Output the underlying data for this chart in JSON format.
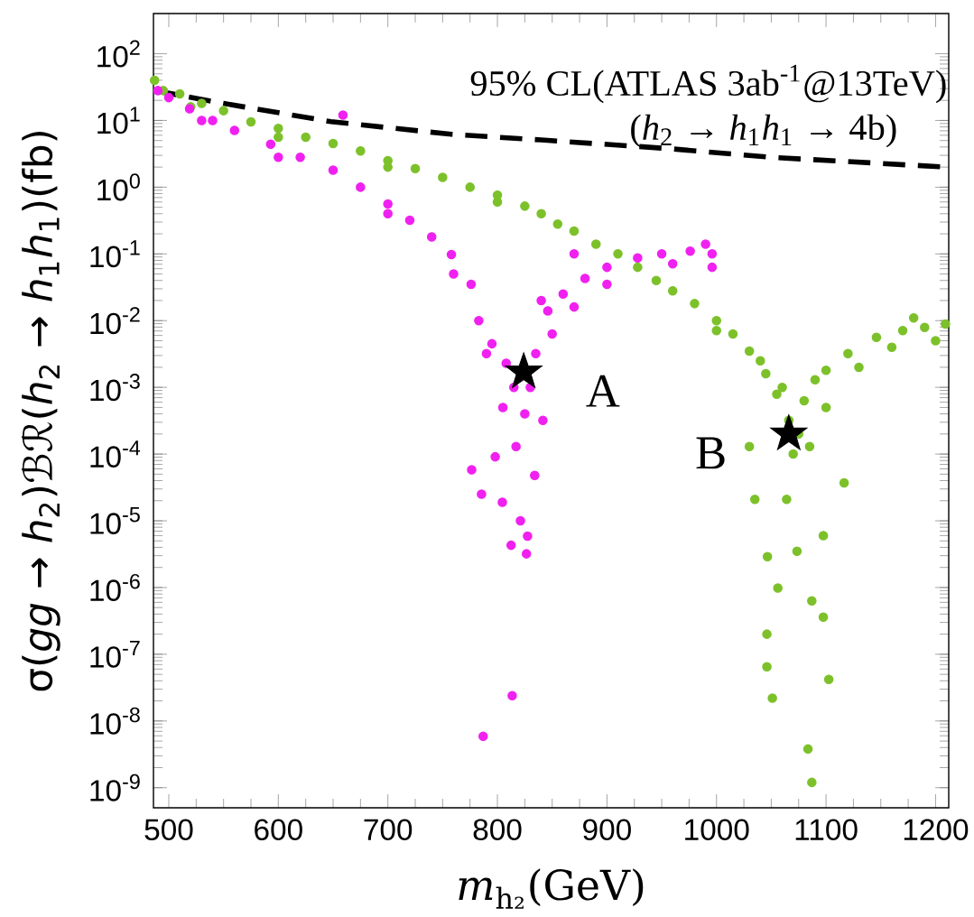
{
  "chart_data": {
    "type": "scatter",
    "xlabel": "*m*$_{h₂}$(GeV)",
    "ylabel": "σ(*gg* → *h*$_{2}$)ℬℛ(*h*$_{2}$ → *h*$_{1}$*h*$_{1}$)(fb)",
    "log": "y",
    "grid": false,
    "xlim": [
      486,
      1212
    ],
    "ylim": [
      5e-10,
      400
    ],
    "xticks": [
      500,
      600,
      700,
      800,
      900,
      1000,
      1100,
      1200
    ],
    "yticks": [
      {
        "value": 1e-09,
        "label": "10$^{-9}$"
      },
      {
        "value": 1e-08,
        "label": "10$^{-8}$"
      },
      {
        "value": 1e-07,
        "label": "10$^{-7}$"
      },
      {
        "value": 1e-06,
        "label": "10$^{-6}$"
      },
      {
        "value": 1e-05,
        "label": "10$^{-5}$"
      },
      {
        "value": 0.0001,
        "label": "10$^{-4}$"
      },
      {
        "value": 0.001,
        "label": "10$^{-3}$"
      },
      {
        "value": 0.01,
        "label": "10$^{-2}$"
      },
      {
        "value": 0.1,
        "label": "10$^{-1}$"
      },
      {
        "value": 1,
        "label": "10$^{0}$"
      },
      {
        "value": 10,
        "label": "10$^{1}$"
      },
      {
        "value": 100,
        "label": "10$^{2}$"
      }
    ],
    "series": [
      {
        "marker": "circle",
        "color": "#7cc12a",
        "x": [
          487,
          495,
          510,
          530,
          550,
          575,
          600,
          625,
          650,
          675,
          700,
          725,
          750,
          775,
          800,
          825,
          840,
          855,
          870,
          890,
          910,
          928,
          945,
          960,
          980,
          1000,
          1015,
          1030,
          1045,
          1055,
          1066,
          1080,
          1090,
          1100,
          1120,
          1146,
          1170,
          1190,
          1209,
          520,
          600,
          700,
          800,
          1000,
          1040,
          1060,
          1075,
          1070,
          1085,
          1100,
          1130,
          1160,
          1200,
          1180,
          1030,
          1035,
          1046.5,
          1046,
          1046,
          1051,
          1083.5,
          1087,
          1102.5,
          1097.5,
          1087,
          1097.5,
          1116.5,
          1064,
          1073.5,
          1056
        ],
        "values": [
          40,
          28,
          25,
          18,
          14,
          9.5,
          7.6,
          5.6,
          4.5,
          3.5,
          2.5,
          1.9,
          1.4,
          1.0,
          0.76,
          0.52,
          0.4,
          0.28,
          0.22,
          0.14,
          0.1,
          0.063,
          0.04,
          0.028,
          0.018,
          0.01,
          0.0063,
          0.0035,
          0.0016,
          0.00079,
          0.00032,
          0.00063,
          0.0013,
          0.0018,
          0.0032,
          0.0056,
          0.0071,
          0.0079,
          0.0089,
          16,
          5.6,
          2.0,
          0.6,
          0.0071,
          0.0025,
          0.001,
          0.0002,
          0.0001,
          0.00013,
          0.0005,
          0.002,
          0.004,
          0.005,
          0.011,
          0.00013,
          2.1e-05,
          2.9e-06,
          2e-07,
          6.5e-08,
          2.2e-08,
          3.8e-09,
          1.2e-09,
          4.2e-08,
          3.6e-07,
          6.3e-07,
          6e-06,
          3.7e-05,
          2.1e-05,
          3.5e-06,
          9.8e-07
        ]
      },
      {
        "marker": "circle",
        "color": "#f020f0",
        "x": [
          490,
          500,
          519,
          540,
          560,
          593,
          620,
          650,
          675,
          700,
          720,
          740,
          758,
          776,
          783,
          795,
          808,
          815,
          805,
          825,
          830,
          835,
          846,
          860,
          880,
          900,
          928,
          950,
          976,
          996,
          990,
          996,
          960,
          900,
          870,
          850,
          840,
          870,
          530,
          600,
          700,
          760,
          790,
          659,
          776.5,
          785.5,
          804.5,
          821,
          812.5,
          827.5,
          826.5,
          813.5,
          787,
          834,
          841.5,
          798,
          817
        ],
        "values": [
          28,
          22,
          15,
          10,
          7.1,
          4.4,
          2.8,
          1.8,
          1.0,
          0.56,
          0.32,
          0.18,
          0.098,
          0.035,
          0.01,
          0.0045,
          0.0023,
          0.001,
          0.0005,
          0.0004,
          0.001,
          0.0032,
          0.014,
          0.025,
          0.043,
          0.063,
          0.087,
          0.1,
          0.11,
          0.1,
          0.14,
          0.063,
          0.071,
          0.035,
          0.016,
          0.0063,
          0.02,
          0.1,
          10,
          2.8,
          0.4,
          0.05,
          0.0032,
          12,
          5.8e-05,
          2.5e-05,
          1.9e-05,
          1e-05,
          4.3e-06,
          5.9e-06,
          3.2e-06,
          2.4e-08,
          5.9e-09,
          4.8e-05,
          0.00032,
          9.1e-05,
          0.00013
        ]
      },
      {
        "type": "line",
        "marker": "none",
        "line_style": "dashed",
        "color": "#000000",
        "x": [
          487,
          550,
          648,
          758,
          840,
          955,
          1050,
          1210
        ],
        "values": [
          28,
          18,
          9.6,
          6.2,
          5.1,
          3.8,
          2.8,
          2.0
        ]
      },
      {
        "marker": "star",
        "color": "#000000",
        "x": [
          824,
          1066
        ],
        "values": [
          0.0017,
          0.0002
        ]
      }
    ],
    "annotations": [
      {
        "text": "A",
        "x": 824,
        "y": 0.0017
      },
      {
        "text": "B",
        "x": 1066,
        "y": 0.0002
      },
      "95% CL(ATLAS 3ab$^{-1}$@13TeV)",
      "(*h*$_{2}$ → *h*$_{1}$*h*$_{1}$ → 4b)"
    ]
  }
}
